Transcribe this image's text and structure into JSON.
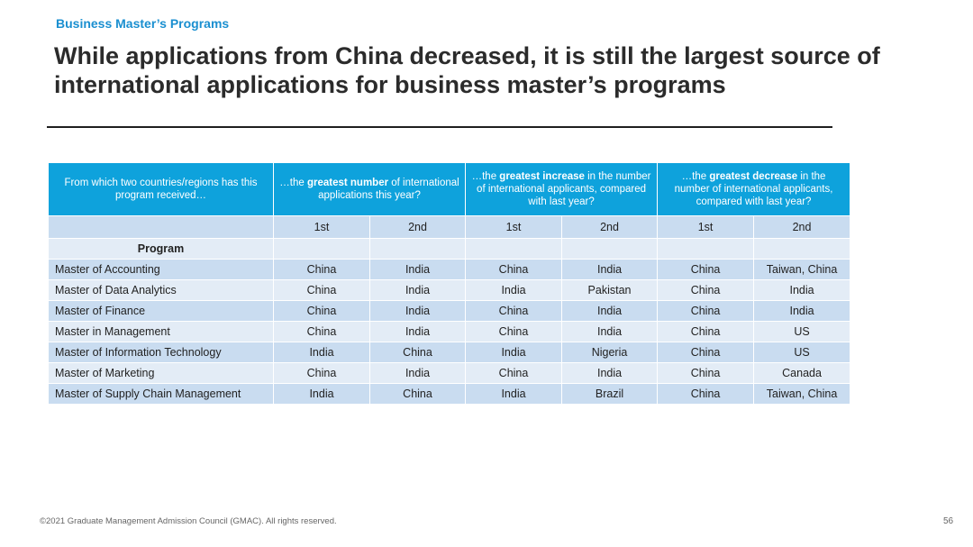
{
  "section_label": "Business Master’s Programs",
  "title": "While applications from China decreased, it is still the largest source of international applications for business master’s programs",
  "table": {
    "header_first": "From which two countries/regions has this program received…",
    "groups": [
      {
        "pre": "…the ",
        "bold": "greatest number",
        "post": " of international applications this year?"
      },
      {
        "pre": "…the ",
        "bold": "greatest increase",
        "post": " in the number of international applicants, compared with last year?"
      },
      {
        "pre": "…the ",
        "bold": "greatest decrease",
        "post": " in the number of international applicants, compared with last year?"
      }
    ],
    "rank_labels": [
      "1st",
      "2nd",
      "1st",
      "2nd",
      "1st",
      "2nd"
    ],
    "program_label": "Program",
    "rows": [
      {
        "program": "Master of Accounting",
        "values": [
          "China",
          "India",
          "China",
          "India",
          "China",
          "Taiwan, China"
        ]
      },
      {
        "program": "Master of Data Analytics",
        "values": [
          "China",
          "India",
          "India",
          "Pakistan",
          "China",
          "India"
        ]
      },
      {
        "program": "Master of Finance",
        "values": [
          "China",
          "India",
          "China",
          "India",
          "China",
          "India"
        ]
      },
      {
        "program": "Master in Management",
        "values": [
          "China",
          "India",
          "China",
          "India",
          "China",
          "US"
        ]
      },
      {
        "program": "Master of Information Technology",
        "values": [
          "India",
          "China",
          "India",
          "Nigeria",
          "China",
          "US"
        ]
      },
      {
        "program": "Master of Marketing",
        "values": [
          "China",
          "India",
          "China",
          "India",
          "China",
          "Canada"
        ]
      },
      {
        "program": "Master of Supply Chain Management",
        "values": [
          "India",
          "China",
          "India",
          "Brazil",
          "China",
          "Taiwan, China"
        ]
      }
    ]
  },
  "footer": "©2021 Graduate Management Admission Council (GMAC). All rights reserved.",
  "page_number": "56"
}
